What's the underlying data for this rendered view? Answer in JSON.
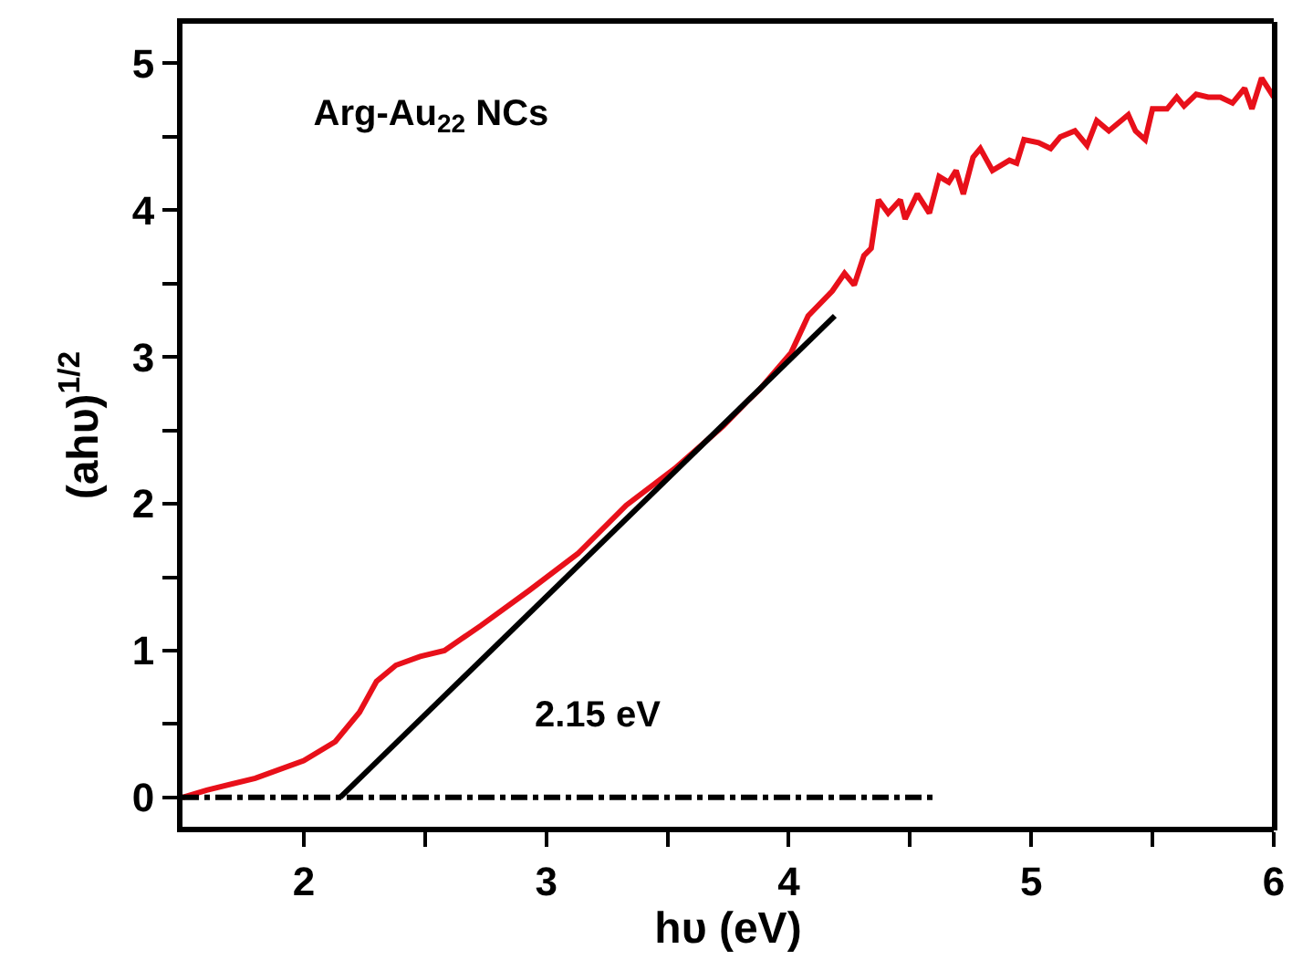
{
  "chart_data": {
    "type": "line",
    "title": "Arg-Au$_{22}$ NCs",
    "xlabel": "hυ (eV)",
    "ylabel": "(ahυ)$^{1/2}$",
    "annotations": [
      "2.15 eV"
    ],
    "xlim": [
      1.5,
      6
    ],
    "xticks": [
      2,
      {
        "value": 2.5,
        "label": null
      },
      3,
      {
        "value": 3.5,
        "label": null
      },
      4,
      {
        "value": 4.5,
        "label": null
      },
      5,
      {
        "value": 5.5,
        "label": null
      },
      6
    ],
    "ylim": [
      -0.2,
      5.27
    ],
    "yticks": [
      0,
      {
        "value": 0.5,
        "label": null
      },
      1,
      {
        "value": 1.5,
        "label": null
      },
      2,
      {
        "value": 2.5,
        "label": null
      },
      3,
      {
        "value": 3.5,
        "label": null
      },
      4,
      {
        "value": 4.5,
        "label": null
      },
      5
    ],
    "grid": false,
    "marker": "none",
    "line_style": "solid",
    "series": [
      {
        "color": "#e8101a",
        "x": [
          1.5,
          1.6,
          1.8,
          2.0,
          2.13,
          2.23,
          2.3,
          2.38,
          2.48,
          2.58,
          2.73,
          2.93,
          3.13,
          3.33,
          3.53,
          3.73,
          3.83,
          3.88,
          4.01,
          4.08,
          4.18,
          4.23,
          4.27,
          4.31,
          4.34,
          4.37,
          4.41,
          4.46,
          4.48,
          4.53,
          4.58,
          4.62,
          4.66,
          4.69,
          4.72,
          4.76,
          4.79,
          4.84,
          4.91,
          4.94,
          4.97,
          5.03,
          5.08,
          5.12,
          5.18,
          5.23,
          5.27,
          5.32,
          5.4,
          5.43,
          5.47,
          5.5,
          5.56,
          5.6,
          5.63,
          5.68,
          5.73,
          5.78,
          5.83,
          5.88,
          5.91,
          5.95,
          6.0
        ],
        "values": [
          0.0,
          0.05,
          0.13,
          0.25,
          0.38,
          0.58,
          0.79,
          0.9,
          0.96,
          1.0,
          1.17,
          1.41,
          1.66,
          1.99,
          2.24,
          2.53,
          2.7,
          2.78,
          3.03,
          3.28,
          3.45,
          3.57,
          3.49,
          3.69,
          3.74,
          4.07,
          3.98,
          4.07,
          3.94,
          4.11,
          3.98,
          4.23,
          4.19,
          4.27,
          4.11,
          4.36,
          4.42,
          4.27,
          4.34,
          4.32,
          4.48,
          4.46,
          4.42,
          4.5,
          4.54,
          4.44,
          4.61,
          4.54,
          4.65,
          4.54,
          4.48,
          4.69,
          4.69,
          4.77,
          4.71,
          4.79,
          4.77,
          4.77,
          4.73,
          4.83,
          4.69,
          4.9,
          4.77
        ]
      },
      {
        "type": "line",
        "color": "#000000",
        "x": [
          2.15,
          4.19
        ],
        "values": [
          0,
          3.28
        ]
      },
      {
        "type": "line",
        "color": "#000000",
        "line_style": "dashed",
        "x": [
          1.5,
          4.6
        ],
        "values": [
          0,
          0
        ]
      }
    ]
  }
}
